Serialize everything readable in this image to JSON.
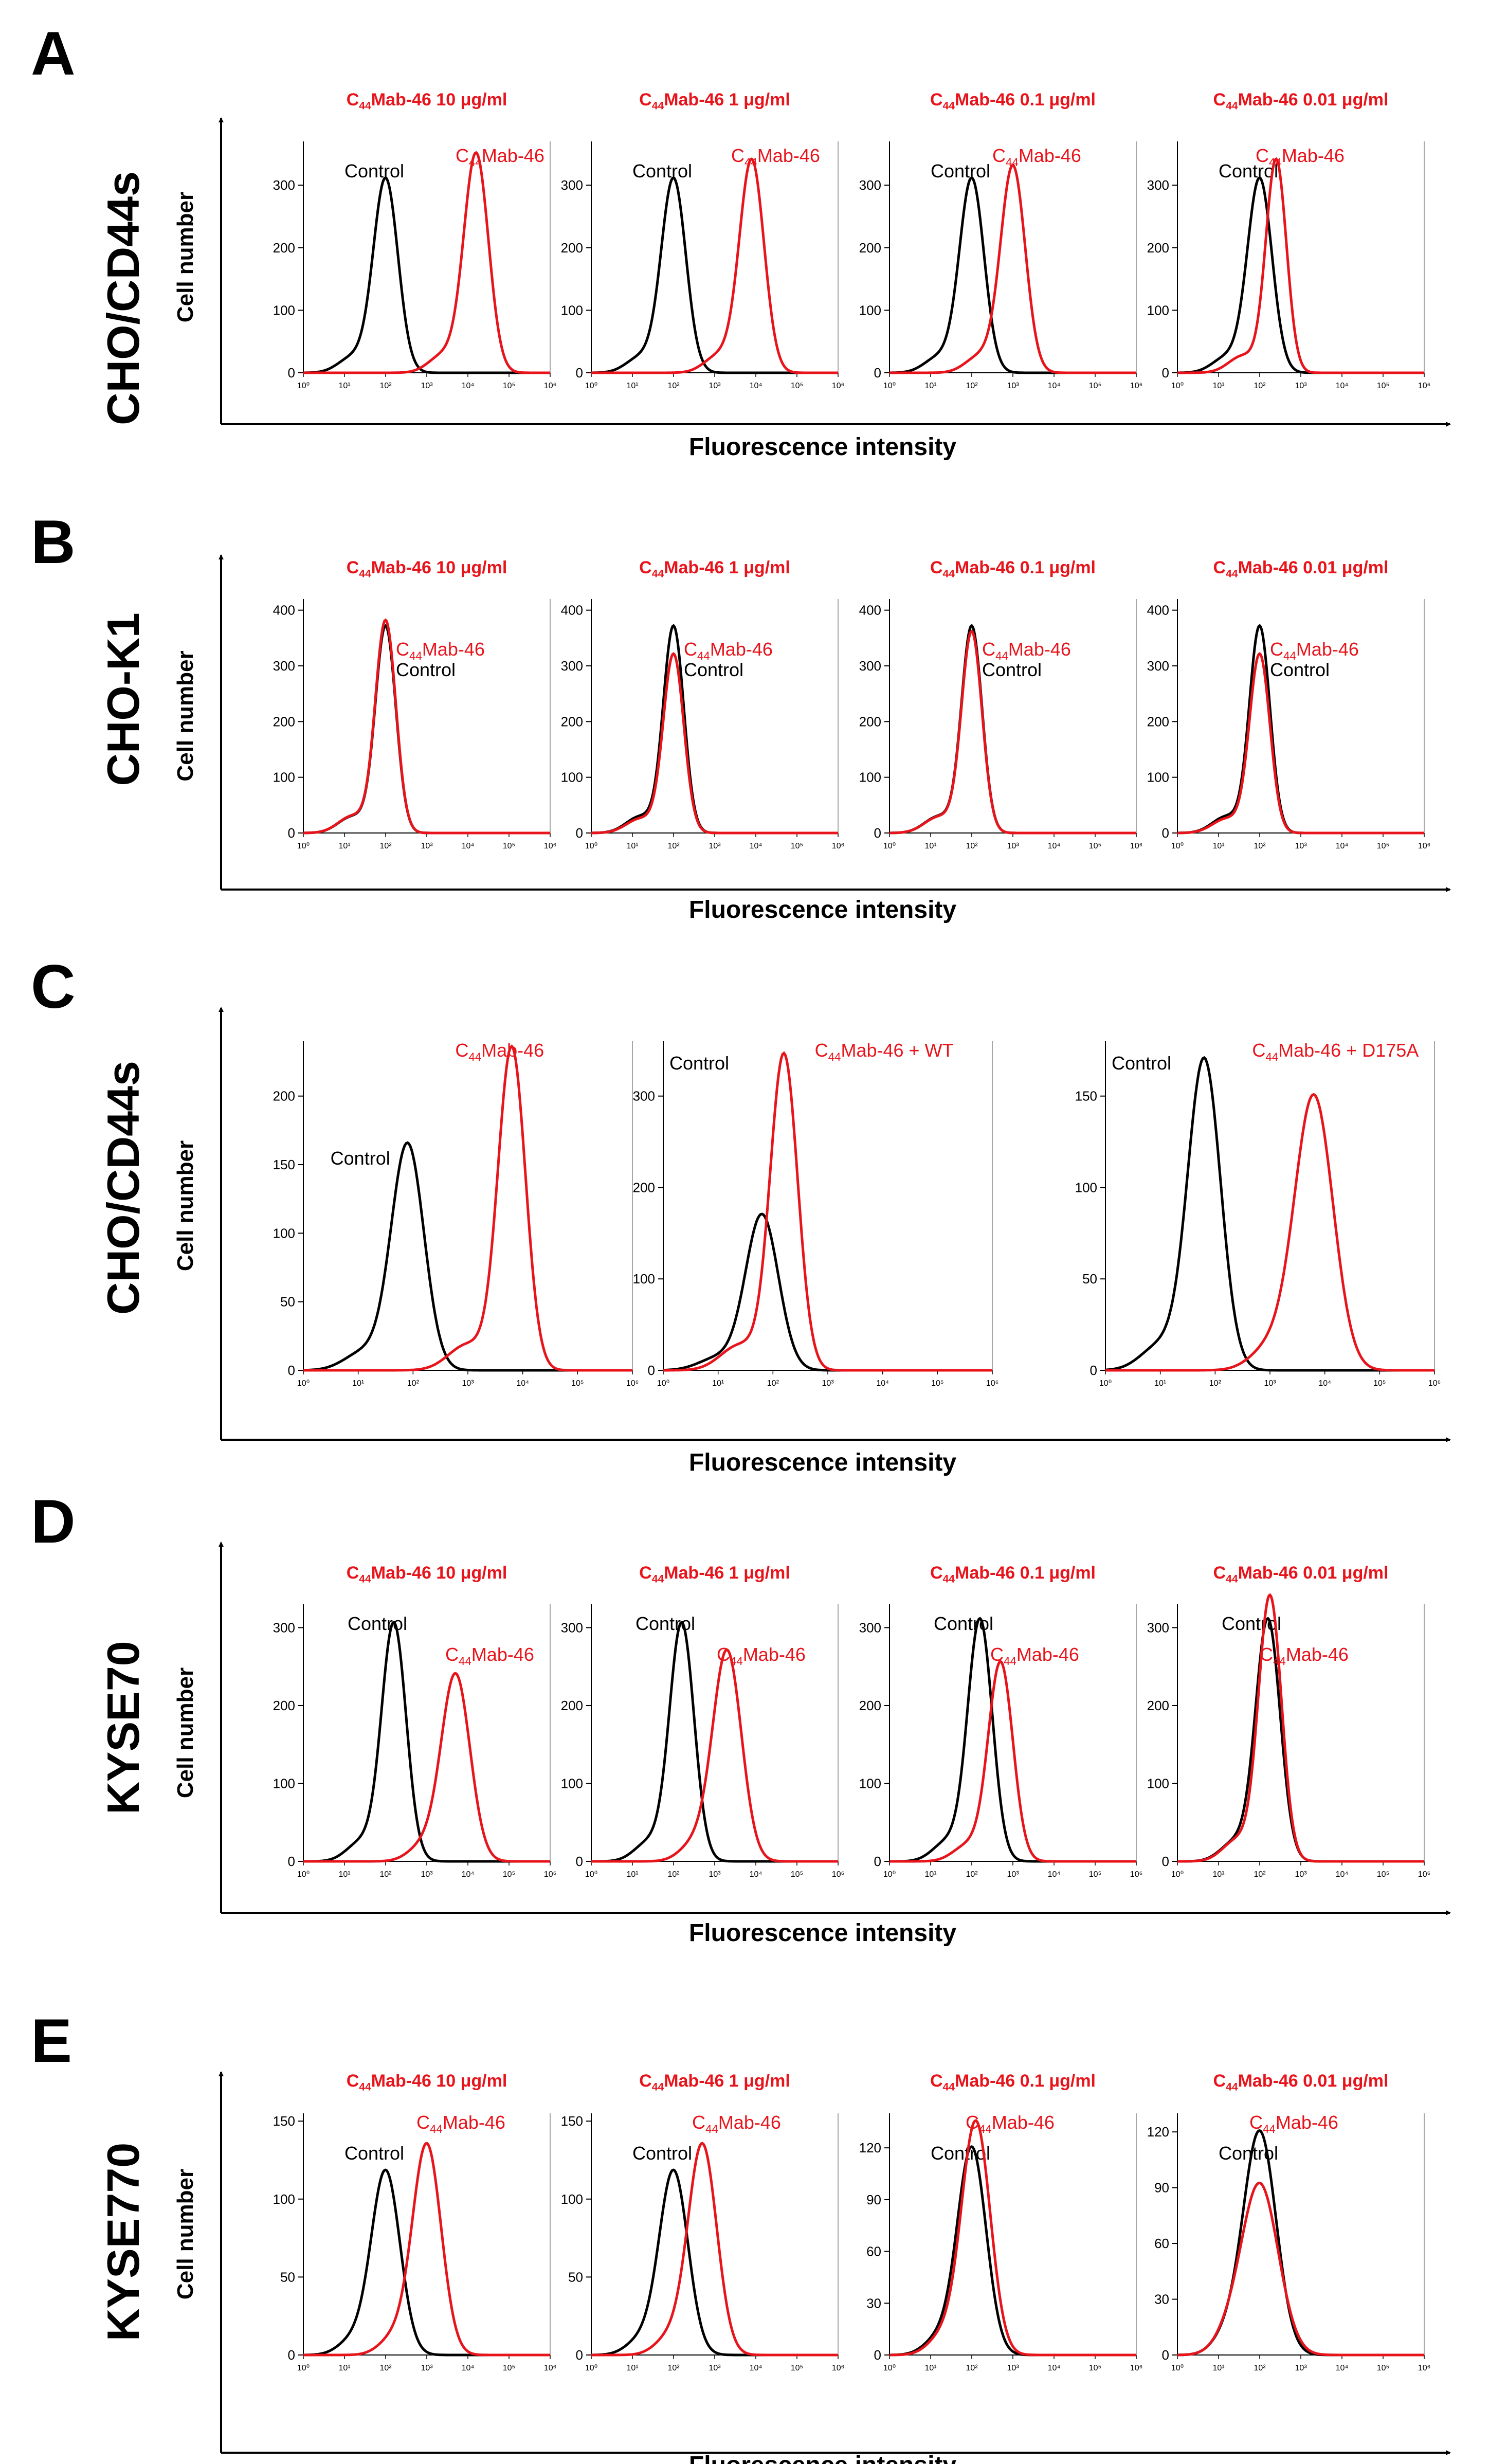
{
  "colors": {
    "control": "#000000",
    "antibody": "#e8141b",
    "title": "#e8141b",
    "axis": "#000000"
  },
  "x_axis_label": "Fluorescence intensity",
  "y_axis_label": "Cell number",
  "chart_data": [
    {
      "panel": "A",
      "cell_line": "CHO/CD44s",
      "type": "line",
      "xscale": "log",
      "xticks": [
        "10⁰",
        "10¹",
        "10²",
        "10³",
        "10⁴",
        "10⁵",
        "10⁶"
      ],
      "plots": [
        {
          "title": "C44Mab-46 10 μg/ml",
          "ylim": [
            0,
            370
          ],
          "yticks": [
            0,
            100,
            200,
            300
          ],
          "series": [
            {
              "name": "Control",
              "peak_log10": 2.0,
              "peak_count": 310,
              "width": 0.3
            },
            {
              "name": "C44Mab-46",
              "peak_log10": 4.2,
              "peak_count": 350,
              "width": 0.3
            }
          ]
        },
        {
          "title": "C44Mab-46  1 μg/ml",
          "ylim": [
            0,
            370
          ],
          "yticks": [
            0,
            100,
            200,
            300
          ],
          "series": [
            {
              "name": "Control",
              "peak_log10": 2.0,
              "peak_count": 310,
              "width": 0.3
            },
            {
              "name": "C44Mab-46",
              "peak_log10": 3.9,
              "peak_count": 340,
              "width": 0.3
            }
          ]
        },
        {
          "title": "C44Mab-46  0.1 μg/ml",
          "ylim": [
            0,
            370
          ],
          "yticks": [
            0,
            100,
            200,
            300
          ],
          "series": [
            {
              "name": "Control",
              "peak_log10": 2.0,
              "peak_count": 310,
              "width": 0.3
            },
            {
              "name": "C44Mab-46",
              "peak_log10": 3.0,
              "peak_count": 330,
              "width": 0.3
            }
          ]
        },
        {
          "title": "C44Mab-46  0.01 μg/ml",
          "ylim": [
            0,
            370
          ],
          "yticks": [
            0,
            100,
            200,
            300
          ],
          "series": [
            {
              "name": "Control",
              "peak_log10": 2.0,
              "peak_count": 310,
              "width": 0.3
            },
            {
              "name": "C44Mab-46",
              "peak_log10": 2.4,
              "peak_count": 340,
              "width": 0.25
            }
          ]
        }
      ],
      "annotations": [
        "Control",
        "C44Mab-46"
      ]
    },
    {
      "panel": "B",
      "cell_line": "CHO-K1",
      "type": "line",
      "xscale": "log",
      "xticks": [
        "10⁰",
        "10¹",
        "10²",
        "10³",
        "10⁴",
        "10⁵",
        "10⁶"
      ],
      "plots": [
        {
          "title": "C44Mab-46 10 μg/ml",
          "ylim": [
            0,
            420
          ],
          "yticks": [
            0,
            100,
            200,
            300,
            400
          ],
          "series": [
            {
              "name": "Control",
              "peak_log10": 2.0,
              "peak_count": 370,
              "width": 0.25
            },
            {
              "name": "C44Mab-46",
              "peak_log10": 2.0,
              "peak_count": 380,
              "width": 0.25
            }
          ]
        },
        {
          "title": "C44Mab-46  1 μg/ml",
          "ylim": [
            0,
            420
          ],
          "yticks": [
            0,
            100,
            200,
            300,
            400
          ],
          "series": [
            {
              "name": "Control",
              "peak_log10": 2.0,
              "peak_count": 370,
              "width": 0.25
            },
            {
              "name": "C44Mab-46",
              "peak_log10": 2.0,
              "peak_count": 320,
              "width": 0.25
            }
          ]
        },
        {
          "title": "C44Mab-46  0.1 μg/ml",
          "ylim": [
            0,
            420
          ],
          "yticks": [
            0,
            100,
            200,
            300,
            400
          ],
          "series": [
            {
              "name": "Control",
              "peak_log10": 2.0,
              "peak_count": 370,
              "width": 0.25
            },
            {
              "name": "C44Mab-46",
              "peak_log10": 2.0,
              "peak_count": 360,
              "width": 0.25
            }
          ]
        },
        {
          "title": "C44Mab-46 0.01 μg/ml",
          "ylim": [
            0,
            420
          ],
          "yticks": [
            0,
            100,
            200,
            300,
            400
          ],
          "series": [
            {
              "name": "Control",
              "peak_log10": 2.0,
              "peak_count": 370,
              "width": 0.25
            },
            {
              "name": "C44Mab-46",
              "peak_log10": 2.0,
              "peak_count": 320,
              "width": 0.25
            }
          ]
        }
      ]
    },
    {
      "panel": "C",
      "cell_line": "CHO/CD44s",
      "type": "line",
      "xscale": "log",
      "xticks": [
        "10⁰",
        "10¹",
        "10²",
        "10³",
        "10⁴",
        "10⁵",
        "10⁶"
      ],
      "plots": [
        {
          "title": "",
          "ylim": [
            0,
            240
          ],
          "yticks": [
            0,
            50,
            100,
            150,
            200
          ],
          "series": [
            {
              "name": "Control",
              "peak_log10": 1.9,
              "peak_count": 165,
              "width": 0.3
            },
            {
              "name": "C44Mab-46",
              "peak_log10": 3.8,
              "peak_count": 235,
              "width": 0.25
            }
          ]
        },
        {
          "title": "",
          "ylim": [
            0,
            360
          ],
          "yticks": [
            0,
            100,
            200,
            300
          ],
          "series": [
            {
              "name": "Control",
              "peak_log10": 1.8,
              "peak_count": 170,
              "width": 0.3
            },
            {
              "name": "C44Mab-46 + WT",
              "peak_log10": 2.2,
              "peak_count": 345,
              "width": 0.25
            }
          ]
        },
        {
          "title": "",
          "ylim": [
            0,
            180
          ],
          "yticks": [
            0,
            50,
            100,
            150
          ],
          "series": [
            {
              "name": "Control",
              "peak_log10": 1.8,
              "peak_count": 170,
              "width": 0.3
            },
            {
              "name": "C44Mab-46 + D175A",
              "peak_log10": 3.8,
              "peak_count": 150,
              "width": 0.35
            }
          ]
        }
      ]
    },
    {
      "panel": "D",
      "cell_line": "KYSE70",
      "type": "line",
      "xscale": "log",
      "xticks": [
        "10⁰",
        "10¹",
        "10²",
        "10³",
        "10⁴",
        "10⁵",
        "10⁶"
      ],
      "plots": [
        {
          "title": "C44Mab-46 10 μg/ml",
          "ylim": [
            0,
            330
          ],
          "yticks": [
            0,
            100,
            200,
            300
          ],
          "series": [
            {
              "name": "Control",
              "peak_log10": 2.2,
              "peak_count": 305,
              "width": 0.3
            },
            {
              "name": "C44Mab-46",
              "peak_log10": 3.7,
              "peak_count": 240,
              "width": 0.35
            }
          ]
        },
        {
          "title": "C44Mab-46  1 μg/ml",
          "ylim": [
            0,
            330
          ],
          "yticks": [
            0,
            100,
            200,
            300
          ],
          "series": [
            {
              "name": "Control",
              "peak_log10": 2.2,
              "peak_count": 305,
              "width": 0.3
            },
            {
              "name": "C44Mab-46",
              "peak_log10": 3.3,
              "peak_count": 270,
              "width": 0.35
            }
          ]
        },
        {
          "title": "C44Mab-46  0.1 μg/ml",
          "ylim": [
            0,
            330
          ],
          "yticks": [
            0,
            100,
            200,
            300
          ],
          "series": [
            {
              "name": "Control",
              "peak_log10": 2.2,
              "peak_count": 310,
              "width": 0.3
            },
            {
              "name": "C44Mab-46",
              "peak_log10": 2.7,
              "peak_count": 255,
              "width": 0.3
            }
          ]
        },
        {
          "title": "C44Mab-46 0.01 μg/ml",
          "ylim": [
            0,
            330
          ],
          "yticks": [
            0,
            100,
            200,
            300
          ],
          "series": [
            {
              "name": "Control",
              "peak_log10": 2.2,
              "peak_count": 310,
              "width": 0.3
            },
            {
              "name": "C44Mab-46",
              "peak_log10": 2.25,
              "peak_count": 340,
              "width": 0.28
            }
          ]
        }
      ]
    },
    {
      "panel": "E",
      "cell_line": "KYSE770",
      "type": "line",
      "xscale": "log",
      "xticks": [
        "10⁰",
        "10¹",
        "10²",
        "10³",
        "10⁴",
        "10⁵",
        "10⁶"
      ],
      "plots": [
        {
          "title": "C44Mab-46 10 μg/ml",
          "ylim": [
            0,
            155
          ],
          "yticks": [
            0,
            50,
            100,
            150
          ],
          "series": [
            {
              "name": "Control",
              "peak_log10": 2.0,
              "peak_count": 118,
              "width": 0.35
            },
            {
              "name": "C44Mab-46",
              "peak_log10": 3.0,
              "peak_count": 135,
              "width": 0.35
            }
          ]
        },
        {
          "title": "C44Mab-46  1 μg/ml",
          "ylim": [
            0,
            155
          ],
          "yticks": [
            0,
            50,
            100,
            150
          ],
          "series": [
            {
              "name": "Control",
              "peak_log10": 2.0,
              "peak_count": 118,
              "width": 0.35
            },
            {
              "name": "C44Mab-46",
              "peak_log10": 2.7,
              "peak_count": 135,
              "width": 0.35
            }
          ]
        },
        {
          "title": "C44Mab-46  0.1 μg/ml",
          "ylim": [
            0,
            140
          ],
          "yticks": [
            0,
            30,
            60,
            90,
            120
          ],
          "series": [
            {
              "name": "Control",
              "peak_log10": 2.0,
              "peak_count": 120,
              "width": 0.35
            },
            {
              "name": "C44Mab-46",
              "peak_log10": 2.1,
              "peak_count": 135,
              "width": 0.35
            }
          ]
        },
        {
          "title": "C44Mab-46  0.01 μg/ml",
          "ylim": [
            0,
            130
          ],
          "yticks": [
            0,
            30,
            60,
            90,
            120
          ],
          "series": [
            {
              "name": "Control",
              "peak_log10": 2.0,
              "peak_count": 120,
              "width": 0.4
            },
            {
              "name": "C44Mab-46",
              "peak_log10": 2.0,
              "peak_count": 92,
              "width": 0.45
            }
          ]
        }
      ]
    }
  ]
}
